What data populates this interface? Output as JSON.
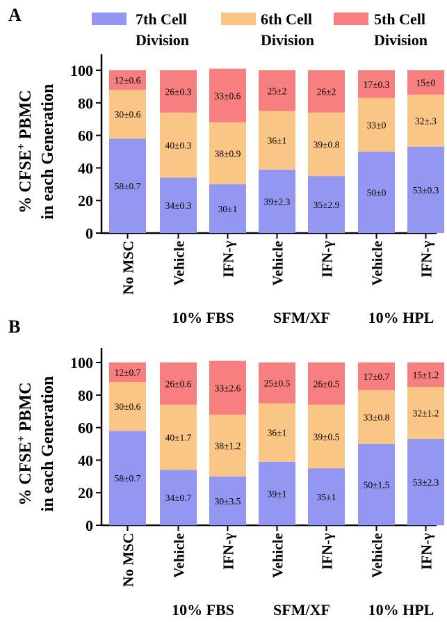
{
  "colors": {
    "7th": "#9497f2",
    "6th": "#f9c686",
    "5th": "#f87f80",
    "axis": "#000000"
  },
  "legend": [
    {
      "line1": "7th Cell",
      "line2": "Division",
      "color": "#9497f2"
    },
    {
      "line1": "6th Cell",
      "line2": "Division",
      "color": "#f9c686"
    },
    {
      "line1": "5th Cell",
      "line2": "Division",
      "color": "#f87f80"
    }
  ],
  "axis": {
    "ylabel_line1": "% CFSE",
    "ylabel_sup": "+",
    "ylabel_line1_tail": " PBMC",
    "ylabel_line2": "in each Generation"
  },
  "chart_data": [
    {
      "type": "bar",
      "stacked": true,
      "panel": "A",
      "categories": [
        "No MSC",
        "Vehicle",
        "IFN-γ",
        "Vehicle",
        "IFN-γ",
        "Vehicle",
        "IFN-γ"
      ],
      "groups": [
        {
          "label": "10% FBS",
          "categories": [
            1,
            2
          ]
        },
        {
          "label": "SFM/XF",
          "categories": [
            3,
            4
          ]
        },
        {
          "label": "10% HPL",
          "categories": [
            5,
            6
          ]
        }
      ],
      "ylim": [
        0,
        100
      ],
      "yticks": [
        0,
        20,
        40,
        60,
        80,
        100
      ],
      "series": [
        {
          "name": "7th Cell Division",
          "values": [
            58,
            34,
            30,
            39,
            35,
            50,
            53
          ],
          "labels": [
            "58±0.7",
            "34±0.3",
            "30±1",
            "39±2.3",
            "35±2.9",
            "50±0",
            "53±0.3"
          ]
        },
        {
          "name": "6th Cell Division",
          "values": [
            30,
            40,
            38,
            36,
            39,
            33,
            32
          ],
          "labels": [
            "30±0.6",
            "40±0.3",
            "38±0.9",
            "36±1",
            "39±0.8",
            "33±0",
            "32±.3"
          ]
        },
        {
          "name": "5th Cell Division",
          "values": [
            12,
            26,
            33,
            25,
            26,
            17,
            15
          ],
          "labels": [
            "12±0.6",
            "26±0.3",
            "33±0.6",
            "25±2",
            "26±2",
            "17±0.3",
            "15±0"
          ]
        }
      ]
    },
    {
      "type": "bar",
      "stacked": true,
      "panel": "B",
      "categories": [
        "No MSC",
        "Vehicle",
        "IFN-γ",
        "Vehicle",
        "IFN-γ",
        "Vehicle",
        "IFN-γ"
      ],
      "groups": [
        {
          "label": "10% FBS",
          "categories": [
            1,
            2
          ]
        },
        {
          "label": "SFM/XF",
          "categories": [
            3,
            4
          ]
        },
        {
          "label": "10% HPL",
          "categories": [
            5,
            6
          ]
        }
      ],
      "ylim": [
        0,
        100
      ],
      "yticks": [
        0,
        20,
        40,
        60,
        80,
        100
      ],
      "series": [
        {
          "name": "7th Cell Division",
          "values": [
            58,
            34,
            30,
            39,
            35,
            50,
            53
          ],
          "labels": [
            "58±0.7",
            "34±0.7",
            "30±3.5",
            "39±1",
            "35±1",
            "50±1.5",
            "53±2.3"
          ]
        },
        {
          "name": "6th Cell Division",
          "values": [
            30,
            40,
            38,
            36,
            39,
            33,
            32
          ],
          "labels": [
            "30±0.6",
            "40±1.7",
            "38±1.2",
            "36±1",
            "39±0.5",
            "33±0.8",
            "32±1.2"
          ]
        },
        {
          "name": "5th Cell Division",
          "values": [
            12,
            26,
            33,
            25,
            26,
            17,
            15
          ],
          "labels": [
            "12±0.7",
            "26±0.6",
            "33±2.6",
            "25±0.5",
            "26±0.5",
            "17±0.7",
            "15±1.2"
          ]
        }
      ]
    }
  ]
}
